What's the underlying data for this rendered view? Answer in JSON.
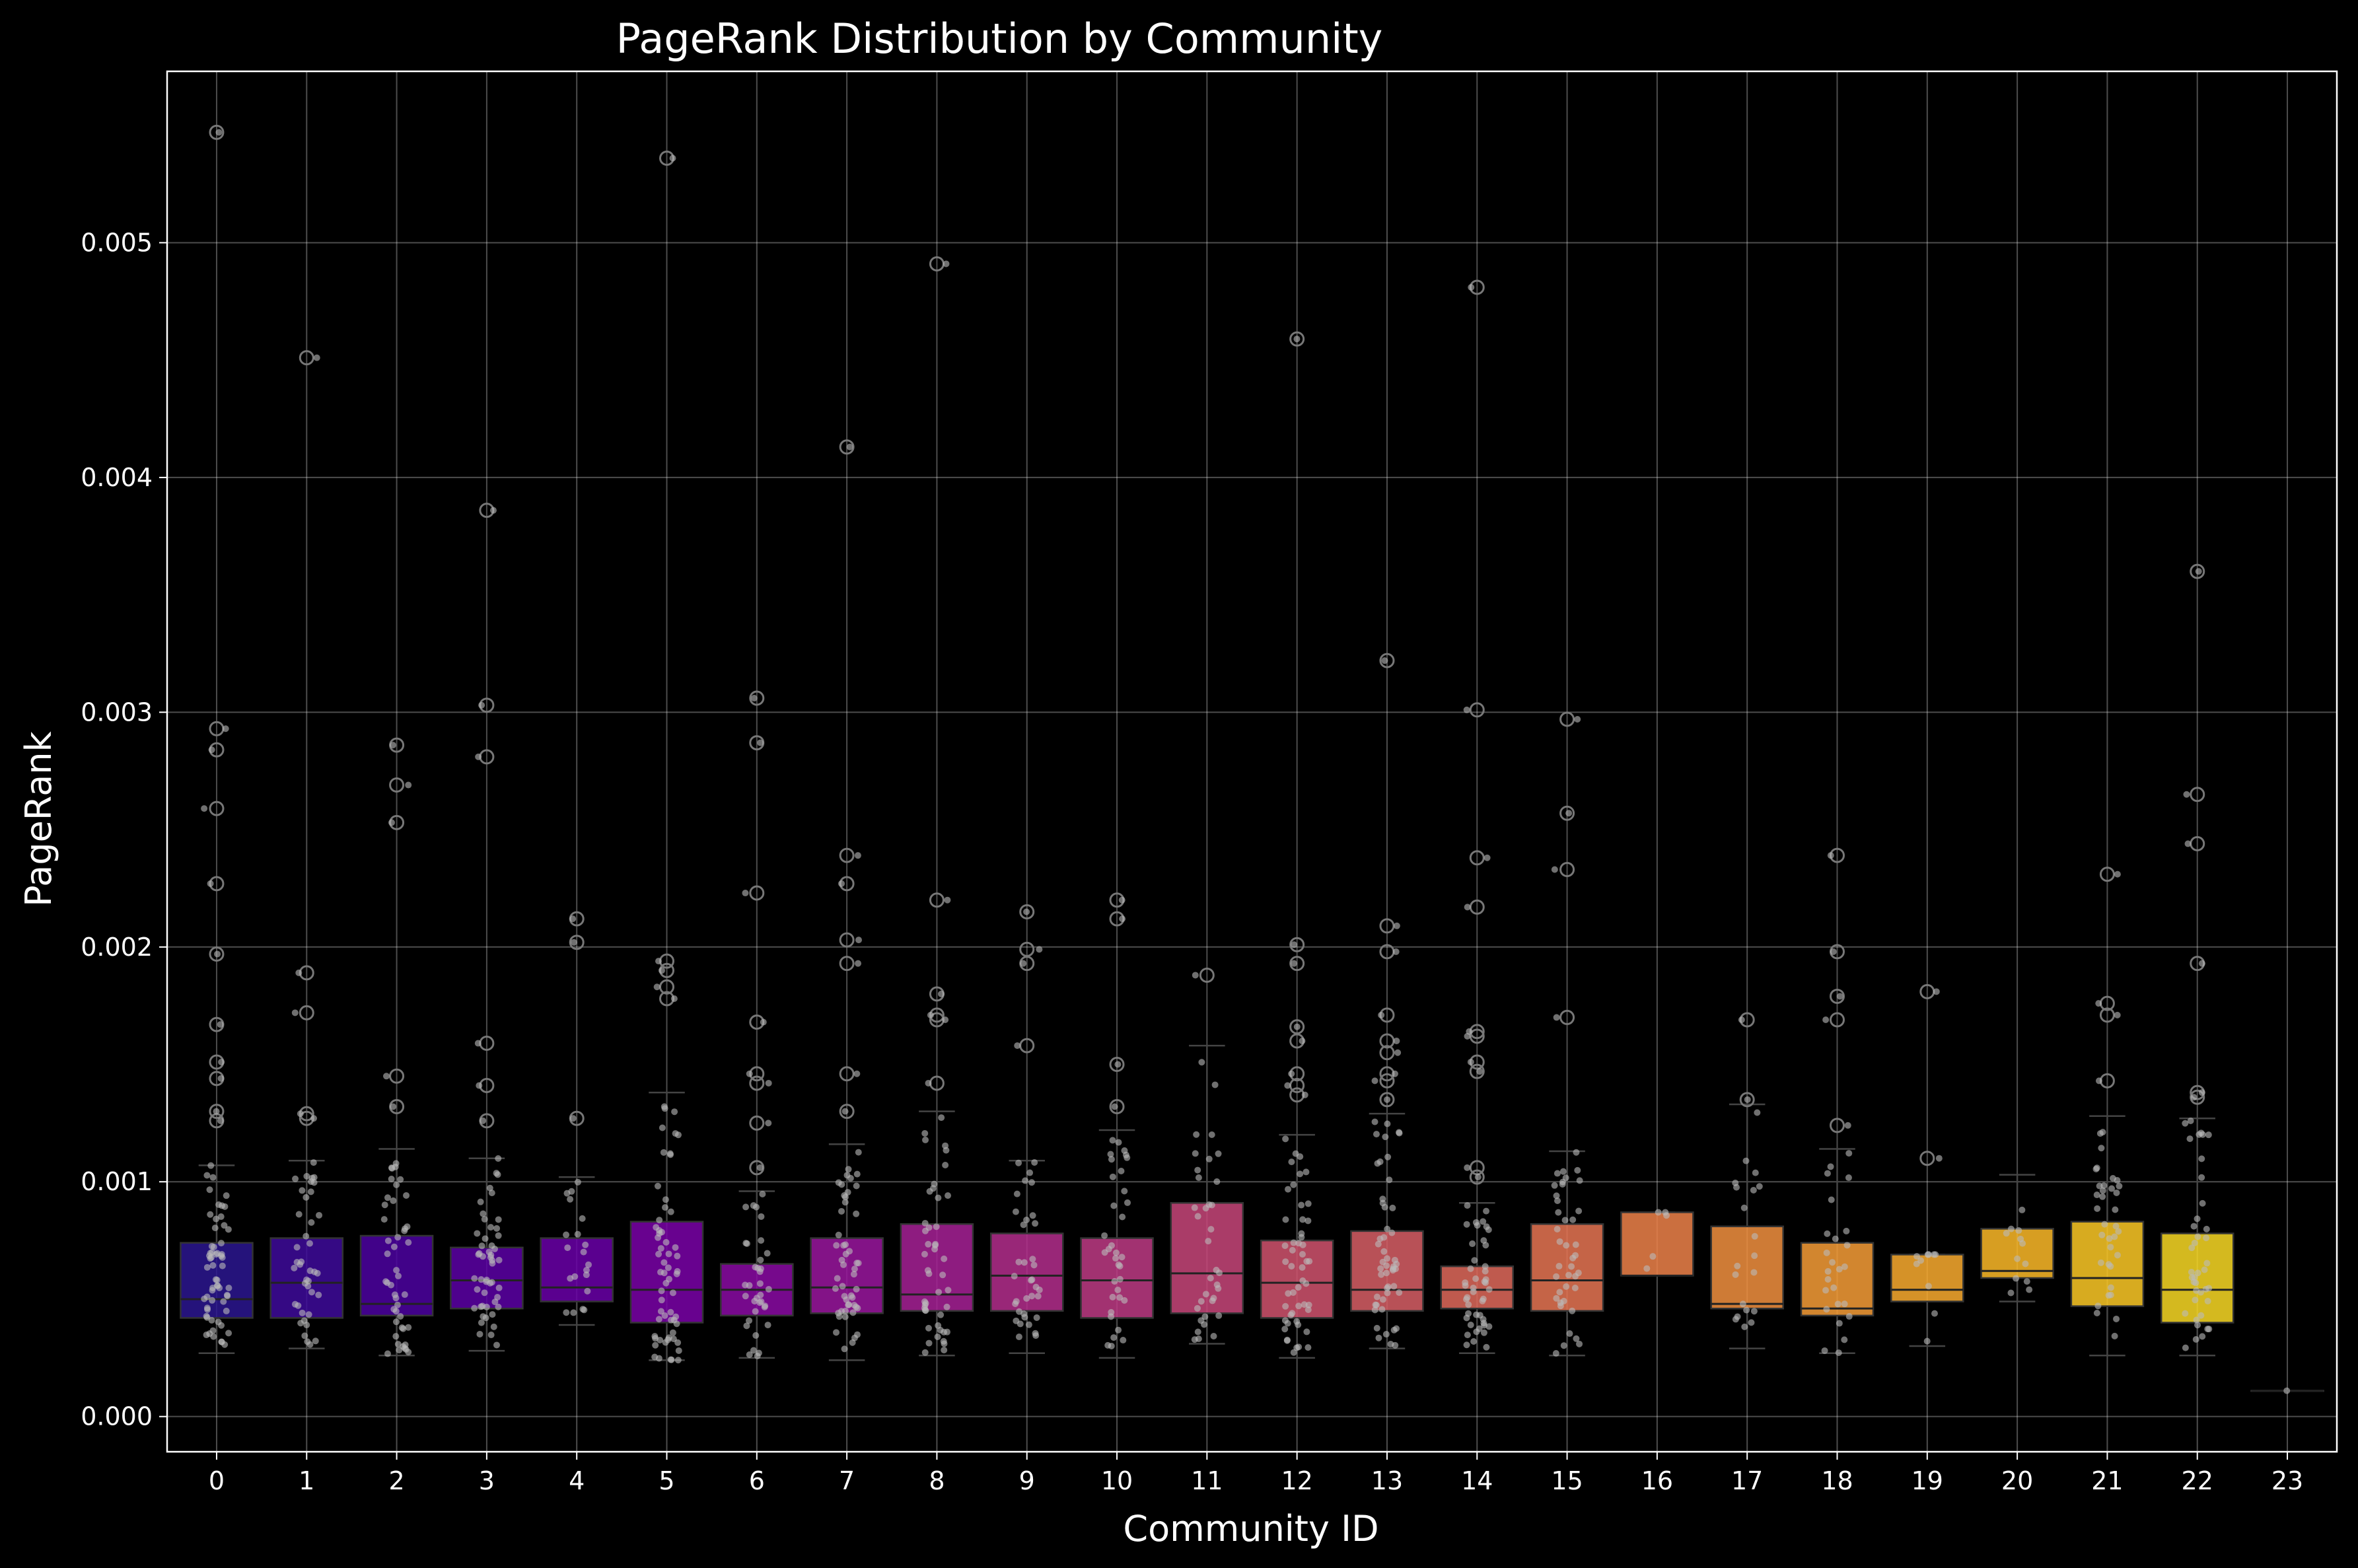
{
  "chart_data": {
    "type": "box",
    "title": "PageRank Distribution by Community",
    "xlabel": "Community ID",
    "ylabel": "PageRank",
    "categories": [
      "0",
      "1",
      "2",
      "3",
      "4",
      "5",
      "6",
      "7",
      "8",
      "9",
      "10",
      "11",
      "12",
      "13",
      "14",
      "15",
      "16",
      "17",
      "18",
      "19",
      "20",
      "21",
      "22",
      "23"
    ],
    "ylim": [
      -0.00015,
      0.00573
    ],
    "y_ticks": [
      0.0,
      0.001,
      0.002,
      0.003,
      0.004,
      0.005
    ],
    "y_tick_labels": [
      "0.000",
      "0.001",
      "0.002",
      "0.003",
      "0.004",
      "0.005"
    ],
    "grid": true,
    "colors": [
      "#2b1691",
      "#3e0b9b",
      "#4c02a1",
      "#5c01a6",
      "#6a00a8",
      "#7a02a8",
      "#8b0aa5",
      "#9a169f",
      "#a72197",
      "#b42e8d",
      "#be3b85",
      "#c8477a",
      "#d1536f",
      "#d85f66",
      "#e16a5c",
      "#e77653",
      "#ee834a",
      "#f29040",
      "#f79d37",
      "#faab2f",
      "#fdba28",
      "#fdc926",
      "#f9d925",
      "#f0f921"
    ],
    "boxes": [
      {
        "q1": 0.00042,
        "median": 0.0005,
        "q3": 0.00074,
        "whisker_low": 0.00027,
        "whisker_high": 0.00107,
        "outliers": [
          0.00547,
          0.00293,
          0.00284,
          0.00259,
          0.00227,
          0.00197,
          0.00167,
          0.00151,
          0.00144,
          0.0013,
          0.00126
        ]
      },
      {
        "q1": 0.00042,
        "median": 0.00057,
        "q3": 0.00076,
        "whisker_low": 0.00029,
        "whisker_high": 0.00109,
        "outliers": [
          0.00451,
          0.00189,
          0.00172,
          0.00129,
          0.00127
        ]
      },
      {
        "q1": 0.00043,
        "median": 0.00048,
        "q3": 0.00077,
        "whisker_low": 0.00026,
        "whisker_high": 0.00114,
        "outliers": [
          0.00286,
          0.00269,
          0.00253,
          0.00145,
          0.00132
        ]
      },
      {
        "q1": 0.00046,
        "median": 0.00058,
        "q3": 0.00072,
        "whisker_low": 0.00028,
        "whisker_high": 0.0011,
        "outliers": [
          0.00386,
          0.00303,
          0.00281,
          0.00159,
          0.00141,
          0.00126
        ]
      },
      {
        "q1": 0.00049,
        "median": 0.00055,
        "q3": 0.00076,
        "whisker_low": 0.00039,
        "whisker_high": 0.00102,
        "outliers": [
          0.00212,
          0.00202,
          0.00127
        ]
      },
      {
        "q1": 0.0004,
        "median": 0.00054,
        "q3": 0.00083,
        "whisker_low": 0.00024,
        "whisker_high": 0.00138,
        "outliers": [
          0.00536,
          0.00194,
          0.0019,
          0.00183,
          0.00178
        ]
      },
      {
        "q1": 0.00043,
        "median": 0.00054,
        "q3": 0.00065,
        "whisker_low": 0.00025,
        "whisker_high": 0.00096,
        "outliers": [
          0.00306,
          0.00287,
          0.00223,
          0.00168,
          0.00146,
          0.00142,
          0.00125,
          0.00106
        ]
      },
      {
        "q1": 0.00044,
        "median": 0.00055,
        "q3": 0.00076,
        "whisker_low": 0.00024,
        "whisker_high": 0.00116,
        "outliers": [
          0.00413,
          0.00239,
          0.00227,
          0.00203,
          0.00193,
          0.00146,
          0.0013
        ]
      },
      {
        "q1": 0.00045,
        "median": 0.00052,
        "q3": 0.00082,
        "whisker_low": 0.00026,
        "whisker_high": 0.0013,
        "outliers": [
          0.00491,
          0.0022,
          0.0018,
          0.00171,
          0.00169,
          0.00142
        ]
      },
      {
        "q1": 0.00045,
        "median": 0.0006,
        "q3": 0.00078,
        "whisker_low": 0.00027,
        "whisker_high": 0.00109,
        "outliers": [
          0.00215,
          0.00199,
          0.00193,
          0.00158
        ]
      },
      {
        "q1": 0.00042,
        "median": 0.00058,
        "q3": 0.00076,
        "whisker_low": 0.00025,
        "whisker_high": 0.00122,
        "outliers": [
          0.0022,
          0.00212,
          0.0015,
          0.00132
        ]
      },
      {
        "q1": 0.00044,
        "median": 0.00061,
        "q3": 0.00091,
        "whisker_low": 0.00031,
        "whisker_high": 0.00158,
        "outliers": [
          0.00188
        ]
      },
      {
        "q1": 0.00042,
        "median": 0.00057,
        "q3": 0.00075,
        "whisker_low": 0.00025,
        "whisker_high": 0.0012,
        "outliers": [
          0.00459,
          0.00201,
          0.00193,
          0.00166,
          0.0016,
          0.00146,
          0.00141,
          0.00137
        ]
      },
      {
        "q1": 0.00045,
        "median": 0.00054,
        "q3": 0.00079,
        "whisker_low": 0.00029,
        "whisker_high": 0.00129,
        "outliers": [
          0.00322,
          0.00209,
          0.00198,
          0.00171,
          0.0016,
          0.00155,
          0.00146,
          0.00143,
          0.00135
        ]
      },
      {
        "q1": 0.00046,
        "median": 0.00054,
        "q3": 0.00064,
        "whisker_low": 0.00027,
        "whisker_high": 0.00091,
        "outliers": [
          0.00481,
          0.00301,
          0.00238,
          0.00217,
          0.00164,
          0.00162,
          0.00151,
          0.00147,
          0.00106,
          0.00102
        ]
      },
      {
        "q1": 0.00045,
        "median": 0.00058,
        "q3": 0.00082,
        "whisker_low": 0.00026,
        "whisker_high": 0.00113,
        "outliers": [
          0.00297,
          0.00257,
          0.00233,
          0.0017
        ]
      },
      {
        "q1": 0.0006,
        "median": 0.0006,
        "q3": 0.00087,
        "whisker_low": 0.0006,
        "whisker_high": 0.00087,
        "outliers": []
      },
      {
        "q1": 0.00046,
        "median": 0.00048,
        "q3": 0.00081,
        "whisker_low": 0.00029,
        "whisker_high": 0.00133,
        "outliers": [
          0.00169,
          0.00135
        ]
      },
      {
        "q1": 0.00043,
        "median": 0.00046,
        "q3": 0.00074,
        "whisker_low": 0.00027,
        "whisker_high": 0.00114,
        "outliers": [
          0.00239,
          0.00198,
          0.00179,
          0.00169,
          0.00124
        ]
      },
      {
        "q1": 0.00049,
        "median": 0.00054,
        "q3": 0.00069,
        "whisker_low": 0.0003,
        "whisker_high": 0.00069,
        "outliers": [
          0.00181,
          0.0011
        ]
      },
      {
        "q1": 0.00059,
        "median": 0.00062,
        "q3": 0.0008,
        "whisker_low": 0.00049,
        "whisker_high": 0.00103,
        "outliers": []
      },
      {
        "q1": 0.00047,
        "median": 0.00059,
        "q3": 0.00083,
        "whisker_low": 0.00026,
        "whisker_high": 0.00128,
        "outliers": [
          0.00231,
          0.00176,
          0.00171,
          0.00143
        ]
      },
      {
        "q1": 0.0004,
        "median": 0.00054,
        "q3": 0.00078,
        "whisker_low": 0.00026,
        "whisker_high": 0.00127,
        "outliers": [
          0.0036,
          0.00265,
          0.00244,
          0.00193,
          0.00138,
          0.00136
        ]
      },
      {
        "q1": 0.00011,
        "median": 0.00011,
        "q3": 0.00011,
        "whisker_low": 0.00011,
        "whisker_high": 0.00011,
        "outliers": []
      }
    ],
    "sample_counts": [
      60,
      40,
      45,
      50,
      20,
      60,
      35,
      50,
      45,
      35,
      35,
      35,
      50,
      50,
      45,
      40,
      5,
      20,
      25,
      10,
      12,
      35,
      40,
      1
    ]
  }
}
